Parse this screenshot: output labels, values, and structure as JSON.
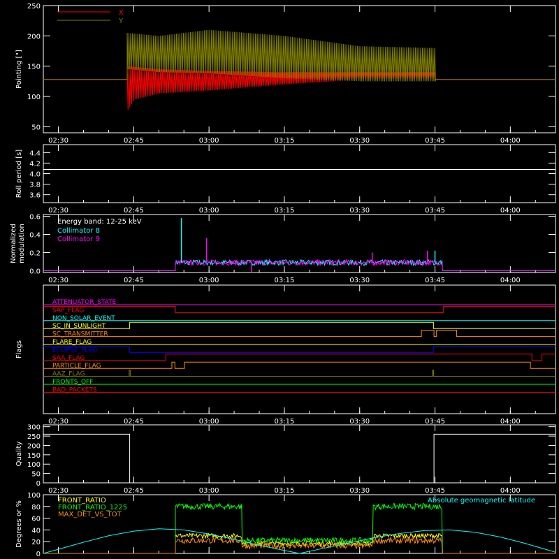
{
  "x_axis": {
    "ticks": [
      "02:30",
      "02:45",
      "03:00",
      "03:15",
      "03:30",
      "03:45",
      "04:00"
    ],
    "tick_minutes": [
      150,
      165,
      180,
      195,
      210,
      225,
      240
    ],
    "range_minutes": [
      147,
      249
    ]
  },
  "chart_data": [
    {
      "type": "line",
      "ylabel": "Pointing [\"]",
      "ylim": [
        40,
        250
      ],
      "yticks": [
        "50",
        "100",
        "150",
        "200",
        "250"
      ],
      "ytick_values": [
        50,
        100,
        150,
        200,
        250
      ],
      "legend": [
        "X",
        "Y"
      ],
      "legend_placement": "top-left",
      "series": [
        {
          "name": "X",
          "color": "#ff0000",
          "baseline": 128,
          "active_minutes": [
            163.7,
            225.0
          ],
          "lower_envelope": [
            [
              163.7,
              78
            ],
            [
              165,
              95
            ],
            [
              170,
              105
            ],
            [
              180,
              110
            ],
            [
              195,
              120
            ],
            [
              210,
              128
            ],
            [
              225,
              128
            ]
          ],
          "upper_envelope": [
            [
              163.7,
              150
            ],
            [
              170,
              145
            ],
            [
              180,
              142
            ],
            [
              195,
              140
            ],
            [
              210,
              140
            ],
            [
              225,
              140
            ]
          ]
        },
        {
          "name": "Y",
          "color": "#808000",
          "baseline": 128,
          "active_minutes": [
            163.7,
            225.0
          ],
          "lower_envelope": [
            [
              163.7,
              145
            ],
            [
              170,
              140
            ],
            [
              180,
              138
            ],
            [
              195,
              130
            ],
            [
              210,
              125
            ],
            [
              225,
              125
            ]
          ],
          "upper_envelope": [
            [
              163.7,
              205
            ],
            [
              170,
              200
            ],
            [
              180,
              210
            ],
            [
              195,
              200
            ],
            [
              210,
              183
            ],
            [
              225,
              180
            ]
          ]
        }
      ]
    },
    {
      "type": "line",
      "ylabel": "Roll period [s]",
      "ylim": [
        3.45,
        4.55
      ],
      "yticks": [
        "3.6",
        "3.8",
        "4.0",
        "4.2",
        "4.4"
      ],
      "ytick_values": [
        3.6,
        3.8,
        4.0,
        4.2,
        4.4
      ],
      "series": [
        {
          "color": "#ffffff",
          "value": 4.08
        }
      ]
    },
    {
      "type": "line",
      "ylabel": "Normalized modulation",
      "ylabel_lines": [
        "Normalized",
        "modulation"
      ],
      "ylim": [
        -0.02,
        0.62
      ],
      "yticks": [
        "0.0",
        "0.2",
        "0.4",
        "0.6"
      ],
      "ytick_values": [
        0,
        0.2,
        0.4,
        0.6
      ],
      "legend_title": "Energy band: 12-25 keV",
      "legend_placement": "top-left",
      "series": [
        {
          "name": "Collimator 8",
          "color": "#00ffff",
          "active_minutes": [
            173.3,
            226.5
          ],
          "level": 0.09
        },
        {
          "name": "Collimator 9",
          "color": "#ff00ff",
          "active_minutes": [
            173.3,
            226.5
          ],
          "level": 0.09
        }
      ],
      "spikes": [
        [
          174.5,
          0.58,
          "#00ffff"
        ],
        [
          179.5,
          0.36,
          "#ff00ff"
        ],
        [
          212.5,
          0.2,
          "#ff00ff"
        ],
        [
          223.5,
          0.22,
          "#ff00ff"
        ],
        [
          225,
          0.22,
          "#00ffff"
        ],
        [
          188.5,
          -0.02,
          "#ff00ff"
        ]
      ]
    },
    {
      "type": "line",
      "ylabel": "Flags",
      "flags": [
        {
          "name": "ATTENUATOR_STATE",
          "color": "#ff00ff",
          "steps": [
            [
              147,
              0
            ]
          ]
        },
        {
          "name": "SAP_FLAG",
          "color": "#ff0000",
          "steps": [
            [
              147,
              1
            ],
            [
              173.3,
              0
            ],
            [
              226.7,
              1
            ]
          ]
        },
        {
          "name": "NON_SOLAR_EVENT",
          "color": "#00ffff",
          "steps": [
            [
              147,
              0
            ]
          ]
        },
        {
          "name": "SC_IN_SUNLIGHT",
          "color": "#ffff00",
          "steps": [
            [
              147,
              0
            ],
            [
              164.2,
              1
            ],
            [
              224.7,
              0
            ]
          ]
        },
        {
          "name": "SC_TRANSMITTER",
          "color": "#ff8c00",
          "steps": [
            [
              147,
              0
            ],
            [
              222.3,
              1
            ],
            [
              224.8,
              0
            ],
            [
              225.3,
              1
            ],
            [
              229.3,
              0
            ]
          ]
        },
        {
          "name": "FLARE_FLAG",
          "color": "#ffff00",
          "steps": [
            [
              147,
              0
            ]
          ]
        },
        {
          "name": "ECLIPSE_FLAG",
          "color": "#0000ff",
          "steps": [
            [
              147,
              1
            ],
            [
              164.2,
              0
            ],
            [
              224.7,
              1
            ]
          ]
        },
        {
          "name": "SAA_FLAG",
          "color": "#ff0000",
          "steps": [
            [
              147,
              0
            ],
            [
              171.4,
              1
            ],
            [
              244.3,
              0
            ],
            [
              246.3,
              1
            ]
          ]
        },
        {
          "name": "PARTICLE_FLAG",
          "color": "#ff8c00",
          "steps": [
            [
              147,
              0
            ],
            [
              172.6,
              1
            ],
            [
              173.2,
              0
            ],
            [
              175.1,
              1
            ],
            [
              244.0,
              0
            ]
          ]
        },
        {
          "name": "AAZ_FLAG",
          "color": "#808000",
          "steps": [
            [
              147,
              0
            ],
            [
              164.1,
              1
            ],
            [
              164.3,
              0
            ],
            [
              224.5,
              1
            ],
            [
              224.7,
              0
            ]
          ]
        },
        {
          "name": "FRONTS_OFF",
          "color": "#00ff00",
          "steps": [
            [
              147,
              0
            ]
          ]
        },
        {
          "name": "BAD_PACKETS",
          "color": "#ff0000",
          "steps": [
            [
              147,
              0
            ]
          ]
        }
      ]
    },
    {
      "type": "line",
      "ylabel": "Quality",
      "ylim": [
        0,
        310
      ],
      "yticks": [
        "0",
        "50",
        "100",
        "150",
        "200",
        "250",
        "300"
      ],
      "ytick_values": [
        0,
        50,
        100,
        150,
        200,
        250,
        300
      ],
      "series": [
        {
          "color": "#ffffff",
          "steps": [
            [
              147,
              260
            ],
            [
              164.2,
              0
            ],
            [
              224.8,
              260
            ]
          ]
        }
      ]
    },
    {
      "type": "line",
      "ylabel": "Degrees or %",
      "ylim": [
        0,
        100
      ],
      "yticks": [
        "0",
        "20",
        "40",
        "60",
        "80",
        "100"
      ],
      "ytick_values": [
        0,
        20,
        40,
        60,
        80,
        100
      ],
      "legend_placement": "top-left",
      "series": [
        {
          "name": "FRONT_RATIO",
          "color": "#ffff00",
          "segments": [
            [
              173.3,
              186.6,
              30
            ],
            [
              186.6,
              212.7,
              17
            ],
            [
              212.7,
              226.5,
              30
            ]
          ]
        },
        {
          "name": "FRONT_RATIO_1225",
          "color": "#00ff00",
          "segments": [
            [
              173.3,
              186.6,
              80
            ],
            [
              186.6,
              212.7,
              22
            ],
            [
              212.7,
              226.5,
              80
            ]
          ]
        },
        {
          "name": "MAX_DET_VS_TOT",
          "color": "#ff8c00",
          "segments": [
            [
              173.3,
              186.6,
              22
            ],
            [
              186.6,
              212.7,
              13
            ],
            [
              212.7,
              226.5,
              22
            ]
          ]
        },
        {
          "name": "Absolute geomagnetic latitude",
          "color": "#00ffff",
          "points": [
            [
              147,
              0
            ],
            [
              150,
              7
            ],
            [
              155,
              19
            ],
            [
              160,
              30
            ],
            [
              165,
              38
            ],
            [
              170,
              42
            ],
            [
              175,
              40
            ],
            [
              180,
              33
            ],
            [
              185,
              24
            ],
            [
              190,
              14
            ],
            [
              195,
              5
            ],
            [
              198,
              0
            ],
            [
              203,
              9
            ],
            [
              208,
              18
            ],
            [
              213,
              27
            ],
            [
              218,
              34
            ],
            [
              223,
              39
            ],
            [
              228,
              40
            ],
            [
              233,
              36
            ],
            [
              238,
              28
            ],
            [
              243,
              17
            ],
            [
              247,
              7
            ],
            [
              249,
              2
            ]
          ]
        }
      ]
    }
  ]
}
